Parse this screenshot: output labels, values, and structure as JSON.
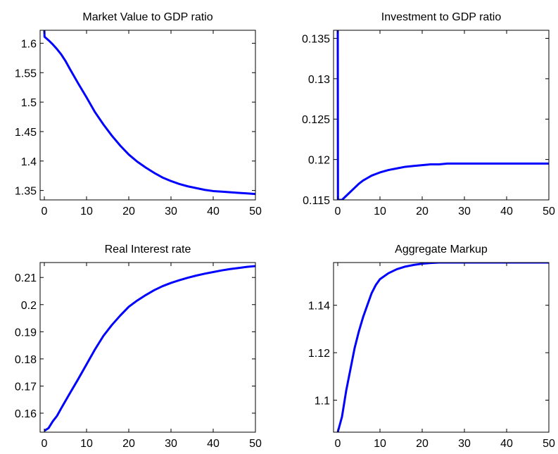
{
  "chart_data": [
    {
      "type": "line",
      "title": "Market Value to GDP ratio",
      "xlabel": "",
      "ylabel": "",
      "xlim": [
        -1,
        50
      ],
      "ylim": [
        1.334,
        1.622
      ],
      "xticks": [
        "0",
        "10",
        "20",
        "30",
        "40",
        "50"
      ],
      "yticks": [
        "1.35",
        "1.4",
        "1.45",
        "1.5",
        "1.55",
        "1.6"
      ],
      "grid": false,
      "color": "#0000ff",
      "series": [
        {
          "x": [
            0,
            0.05,
            1,
            2,
            3,
            4,
            5,
            6,
            8,
            10,
            12,
            14,
            16,
            18,
            20,
            22,
            24,
            26,
            28,
            30,
            32,
            34,
            36,
            38,
            40,
            42,
            44,
            46,
            48,
            50
          ],
          "values": [
            1.622,
            1.611,
            1.605,
            1.598,
            1.59,
            1.581,
            1.57,
            1.557,
            1.532,
            1.508,
            1.483,
            1.462,
            1.443,
            1.426,
            1.411,
            1.399,
            1.389,
            1.38,
            1.372,
            1.366,
            1.361,
            1.357,
            1.354,
            1.351,
            1.349,
            1.348,
            1.347,
            1.346,
            1.345,
            1.344
          ]
        }
      ]
    },
    {
      "type": "line",
      "title": "Investment to GDP ratio",
      "xlabel": "",
      "ylabel": "",
      "xlim": [
        -1,
        50
      ],
      "ylim": [
        0.115,
        0.136
      ],
      "xticks": [
        "0",
        "10",
        "20",
        "30",
        "40",
        "50"
      ],
      "yticks": [
        "0.115",
        "0.12",
        "0.125",
        "0.13",
        "0.135"
      ],
      "grid": false,
      "color": "#0000ff",
      "series": [
        {
          "x": [
            0,
            0.05,
            1,
            2,
            3,
            4,
            5,
            6,
            7,
            8,
            9,
            10,
            12,
            14,
            16,
            18,
            20,
            22,
            24,
            26,
            30,
            35,
            40,
            45,
            50
          ],
          "values": [
            0.136,
            0.115,
            0.115,
            0.1155,
            0.116,
            0.1165,
            0.117,
            0.1174,
            0.1177,
            0.118,
            0.1182,
            0.1184,
            0.1187,
            0.1189,
            0.1191,
            0.1192,
            0.1193,
            0.1194,
            0.1194,
            0.1195,
            0.1195,
            0.1195,
            0.1195,
            0.1195,
            0.1195
          ]
        }
      ]
    },
    {
      "type": "line",
      "title": "Real Interest rate",
      "xlabel": "",
      "ylabel": "",
      "xlim": [
        -1,
        50
      ],
      "ylim": [
        0.153,
        0.2155
      ],
      "xticks": [
        "0",
        "10",
        "20",
        "30",
        "40",
        "50"
      ],
      "yticks": [
        "0.16",
        "0.17",
        "0.18",
        "0.19",
        "0.2",
        "0.21"
      ],
      "grid": false,
      "color": "#0000ff",
      "series": [
        {
          "x": [
            0,
            1,
            2,
            3,
            4,
            5,
            6,
            8,
            10,
            12,
            14,
            16,
            18,
            20,
            22,
            24,
            26,
            28,
            30,
            32,
            34,
            36,
            38,
            40,
            42,
            44,
            46,
            48,
            50
          ],
          "values": [
            0.1535,
            0.1545,
            0.157,
            0.159,
            0.1618,
            0.1645,
            0.1672,
            0.1725,
            0.178,
            0.1835,
            0.1885,
            0.1925,
            0.196,
            0.1992,
            0.2015,
            0.2035,
            0.2053,
            0.2068,
            0.208,
            0.209,
            0.2099,
            0.2107,
            0.2114,
            0.212,
            0.2126,
            0.2131,
            0.2135,
            0.2139,
            0.2142
          ]
        }
      ]
    },
    {
      "type": "line",
      "title": "Aggregate Markup",
      "xlabel": "",
      "ylabel": "",
      "xlim": [
        -1,
        50
      ],
      "ylim": [
        1.0865,
        1.158
      ],
      "xticks": [
        "0",
        "10",
        "20",
        "30",
        "40",
        "50"
      ],
      "yticks": [
        "1.1",
        "1.12",
        "1.14"
      ],
      "grid": false,
      "color": "#0000ff",
      "series": [
        {
          "x": [
            0,
            1,
            2,
            3,
            4,
            5,
            6,
            7,
            8,
            9,
            10,
            12,
            14,
            16,
            18,
            20,
            22,
            24,
            30,
            40,
            50
          ],
          "values": [
            1.0865,
            1.093,
            1.104,
            1.113,
            1.122,
            1.129,
            1.135,
            1.14,
            1.145,
            1.1485,
            1.151,
            1.1535,
            1.1552,
            1.1563,
            1.157,
            1.1575,
            1.1578,
            1.158,
            1.158,
            1.158,
            1.158
          ]
        }
      ]
    }
  ]
}
